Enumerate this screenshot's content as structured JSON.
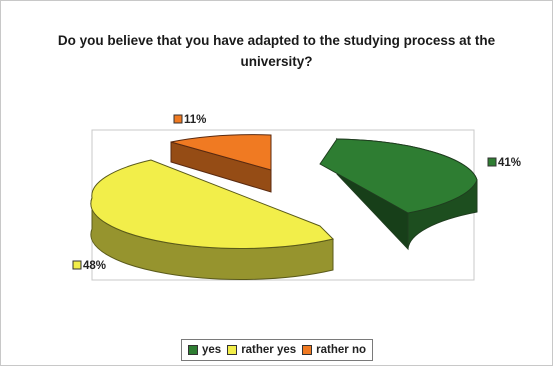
{
  "chart_data": {
    "type": "pie",
    "style": "3d-exploded",
    "title": "Do you believe that you have adapted to the studying process at the university?",
    "slices": [
      {
        "label": "yes",
        "value": 41,
        "display": "41%",
        "color": "#2e7d32"
      },
      {
        "label": "rather yes",
        "value": 48,
        "display": "48%",
        "color": "#f2ee4a"
      },
      {
        "label": "rather no",
        "value": 11,
        "display": "11%",
        "color": "#f07a22"
      }
    ],
    "legend": {
      "position": "bottom",
      "entries": [
        "yes",
        "rather yes",
        "rather no"
      ]
    }
  }
}
